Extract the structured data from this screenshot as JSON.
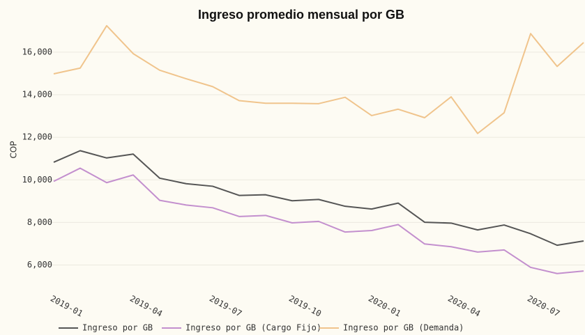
{
  "chart_data": {
    "type": "line",
    "title": "Ingreso promedio mensual por GB",
    "y_label": "COP",
    "categories": [
      "2019-01",
      null,
      null,
      "2019-04",
      null,
      null,
      "2019-07",
      null,
      null,
      "2019-10",
      null,
      null,
      "2020-01",
      null,
      null,
      "2020-04",
      null,
      null,
      "2020-07",
      null,
      null
    ],
    "series": [
      {
        "name": "Ingreso por GB",
        "color": "#555555",
        "values": [
          10830,
          11370,
          11030,
          11210,
          10080,
          9820,
          9700,
          9270,
          9300,
          9020,
          9080,
          8760,
          8630,
          8910,
          8010,
          7970,
          7650,
          7880,
          7470,
          6930,
          7130
        ]
      },
      {
        "name": "Ingreso por GB (Cargo Fijo)",
        "color": "#c38fce",
        "values": [
          9930,
          10550,
          9870,
          10230,
          9040,
          8820,
          8690,
          8280,
          8330,
          7980,
          8050,
          7550,
          7620,
          7900,
          6990,
          6860,
          6610,
          6710,
          5890,
          5600,
          5720
        ]
      },
      {
        "name": "Ingreso por GB (Demanda)",
        "color": "#f0c48c",
        "values": [
          14980,
          15250,
          17240,
          15930,
          15150,
          14750,
          14380,
          13720,
          13600,
          13600,
          13580,
          13880,
          13020,
          13320,
          12920,
          13900,
          12180,
          13150,
          16870,
          15330,
          16450
        ]
      }
    ],
    "ylim": [
      5200,
      17500
    ],
    "yticks": [
      {
        "value": 6000,
        "label": "6,000"
      },
      {
        "value": 8000,
        "label": "8,000"
      },
      {
        "value": 10000,
        "label": "10,000"
      },
      {
        "value": 12000,
        "label": "12,000"
      },
      {
        "value": 14000,
        "label": "14,000"
      },
      {
        "value": 16000,
        "label": "16,000"
      }
    ],
    "grid": true,
    "legend": "bottom"
  }
}
